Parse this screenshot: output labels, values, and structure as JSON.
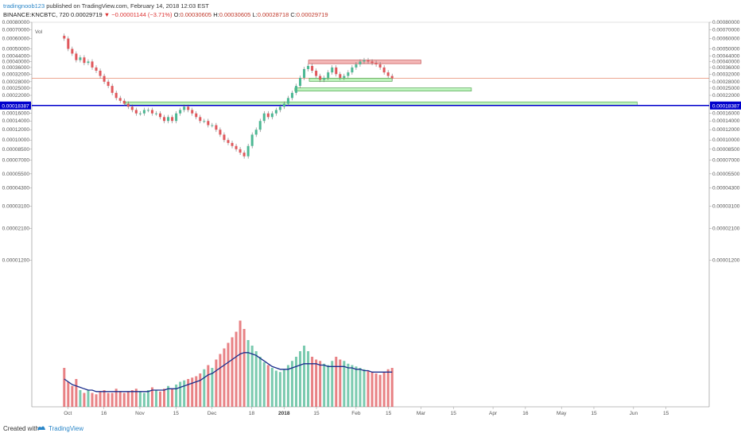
{
  "header": {
    "author": "tradingnoob123",
    "published_text": "published on TradingView.com, February 14, 2018 12:03 EST",
    "symbol": "BINANCE:KNCBTC, 720",
    "last": "0.00029719",
    "change": "−0.00001144 (−3.71%)",
    "o_label": "O:",
    "o_value": "0.00030605",
    "h_label": "H:",
    "h_value": "0.00030605",
    "l_label": "L:",
    "l_value": "0.00028718",
    "c_label": "C:",
    "c_value": "0.00029719",
    "vol_label": "Vol"
  },
  "footer": {
    "created_with": "Created with",
    "brand": "TradingView"
  },
  "colors": {
    "up": "#4db894",
    "down": "#e0575b",
    "wick": "#555555",
    "ma": "#1a2d8c",
    "support_fill": "#b8f2b6",
    "support_stroke": "#45a045",
    "resistance_fill": "#f2b0b0",
    "resistance_stroke": "#c04040",
    "hline": "#0000cc",
    "price_line": "#e07050"
  },
  "chart_data": {
    "type": "candlestick",
    "ylim": [
      9e-07,
      0.0008
    ],
    "y_scale": "log",
    "y_ticks": [
      "0.00080000",
      "0.00070000",
      "0.00060000",
      "0.00050000",
      "0.00044000",
      "0.00040000",
      "0.00036000",
      "0.00032000",
      "0.00028000",
      "0.00025000",
      "0.00022000",
      "0.00019000",
      "0.00016000",
      "0.00014000",
      "0.00012000",
      "0.00010000",
      "0.00008500",
      "0.00007000",
      "0.00005500",
      "0.00004300",
      "0.00003100",
      "0.00002100",
      "0.00001200"
    ],
    "x_ticks": [
      {
        "label": "Oct",
        "x": 0.0
      },
      {
        "label": "16",
        "x": 0.5
      },
      {
        "label": "Nov",
        "x": 1.0
      },
      {
        "label": "15",
        "x": 1.5
      },
      {
        "label": "Dec",
        "x": 2.0
      },
      {
        "label": "18",
        "x": 2.55
      },
      {
        "label": "2018",
        "x": 3.0,
        "bold": true
      },
      {
        "label": "15",
        "x": 3.45
      },
      {
        "label": "Feb",
        "x": 4.0
      },
      {
        "label": "15",
        "x": 4.45
      },
      {
        "label": "Mar",
        "x": 4.9
      },
      {
        "label": "15",
        "x": 5.35
      },
      {
        "label": "Apr",
        "x": 5.9
      },
      {
        "label": "16",
        "x": 6.35
      },
      {
        "label": "May",
        "x": 6.85
      },
      {
        "label": "15",
        "x": 7.3
      },
      {
        "label": "Jun",
        "x": 7.85
      },
      {
        "label": "15",
        "x": 8.3
      }
    ],
    "x_range": [
      -0.5,
      8.9
    ],
    "price_label": "0.00018387",
    "hline_price": 0.00018387,
    "last_price": 0.00029719,
    "zones": [
      {
        "kind": "resistance",
        "x0": 3.34,
        "x1": 4.9,
        "y0": 0.000385,
        "y1": 0.00041
      },
      {
        "kind": "support",
        "x0": 3.35,
        "x1": 4.5,
        "y0": 0.000286,
        "y1": 0.000298
      },
      {
        "kind": "support",
        "x0": 3.15,
        "x1": 5.6,
        "y0": 0.000238,
        "y1": 0.000251
      },
      {
        "kind": "support",
        "x0": 0.8,
        "x1": 7.9,
        "y0": 0.000185,
        "y1": 0.000196
      }
    ],
    "closes": [
      0.0006,
      0.0005,
      0.00046,
      0.00041,
      0.00043,
      0.00039,
      0.0004,
      0.00036,
      0.00034,
      0.00031,
      0.00028,
      0.00026,
      0.00023,
      0.00021,
      0.0002,
      0.00019,
      0.00018,
      0.00017,
      0.00016,
      0.00016,
      0.00017,
      0.00017,
      0.00016,
      0.00016,
      0.00015,
      0.00014,
      0.00015,
      0.00014,
      0.00016,
      0.00017,
      0.00018,
      0.00017,
      0.00016,
      0.00015,
      0.00014,
      0.00014,
      0.00013,
      0.00013,
      0.00012,
      0.00011,
      0.0001,
      9.5e-05,
      9e-05,
      8.5e-05,
      8e-05,
      7.5e-05,
      9e-05,
      0.00011,
      0.00012,
      0.00014,
      0.00016,
      0.00015,
      0.00016,
      0.00017,
      0.00018,
      0.00019,
      0.00021,
      0.00023,
      0.00026,
      0.0003,
      0.00035,
      0.00037,
      0.00034,
      0.00031,
      0.00029,
      0.0003,
      0.00033,
      0.00036,
      0.00032,
      0.0003,
      0.00031,
      0.00033,
      0.00036,
      0.00038,
      0.0004,
      0.00041,
      0.0004,
      0.00039,
      0.00038,
      0.00036,
      0.00033,
      0.00031,
      0.00029719
    ],
    "volumes": [
      2.8e-05,
      1.8e-05,
      1.5e-05,
      2e-05,
      1.2e-05,
      1e-05,
      1.2e-05,
      1e-05,
      9e-06,
      1.1e-05,
      1.2e-05,
      1e-05,
      1e-05,
      1.3e-05,
      1.1e-05,
      1e-05,
      1.1e-05,
      1.2e-05,
      1.3e-05,
      1.1e-05,
      1e-05,
      1.2e-05,
      1.4e-05,
      1.2e-05,
      1.1e-05,
      1.3e-05,
      1.5e-05,
      1.3e-05,
      1.6e-05,
      1.8e-05,
      1.9e-05,
      2e-05,
      2.1e-05,
      2.2e-05,
      2.4e-05,
      2.7e-05,
      3e-05,
      2.8e-05,
      3.4e-05,
      3.8e-05,
      4.2e-05,
      4.6e-05,
      5e-05,
      5.4e-05,
      6.2e-05,
      5.6e-05,
      4.8e-05,
      4.4e-05,
      4e-05,
      3.6e-05,
      3.2e-05,
      3e-05,
      2.8e-05,
      2.6e-05,
      2.5e-05,
      2.7e-05,
      3e-05,
      3.3e-05,
      3.6e-05,
      4e-05,
      4.4e-05,
      4e-05,
      3.6e-05,
      3.4e-05,
      3.3e-05,
      3.1e-05,
      3e-05,
      3.3e-05,
      3.6e-05,
      3.4e-05,
      3.3e-05,
      3.1e-05,
      3e-05,
      2.9e-05,
      2.8e-05,
      2.7e-05,
      2.6e-05,
      2.5e-05,
      2.4e-05,
      2.3e-05,
      2.5e-05,
      2.7e-05,
      2.8e-05
    ],
    "volume_ma": [
      2e-05,
      1.8e-05,
      1.6e-05,
      1.5e-05,
      1.4e-05,
      1.3e-05,
      1.2e-05,
      1.2e-05,
      1.1e-05,
      1.1e-05,
      1.1e-05,
      1.1e-05,
      1.1e-05,
      1.1e-05,
      1.1e-05,
      1.1e-05,
      1.1e-05,
      1.1e-05,
      1.1e-05,
      1.1e-05,
      1.1e-05,
      1.1e-05,
      1.2e-05,
      1.2e-05,
      1.2e-05,
      1.2e-05,
      1.3e-05,
      1.3e-05,
      1.3e-05,
      1.4e-05,
      1.5e-05,
      1.6e-05,
      1.7e-05,
      1.8e-05,
      1.9e-05,
      2.1e-05,
      2.3e-05,
      2.4e-05,
      2.6e-05,
      2.8e-05,
      3e-05,
      3.2e-05,
      3.4e-05,
      3.6e-05,
      3.8e-05,
      3.9e-05,
      3.9e-05,
      3.8e-05,
      3.7e-05,
      3.5e-05,
      3.3e-05,
      3.1e-05,
      2.9e-05,
      2.8e-05,
      2.7e-05,
      2.7e-05,
      2.7e-05,
      2.8e-05,
      2.9e-05,
      3e-05,
      3.1e-05,
      3.1e-05,
      3.1e-05,
      3.1e-05,
      3e-05,
      3e-05,
      2.9e-05,
      2.9e-05,
      2.9e-05,
      2.9e-05,
      2.9e-05,
      2.8e-05,
      2.8e-05,
      2.7e-05,
      2.7e-05,
      2.6e-05,
      2.6e-05,
      2.5e-05,
      2.5e-05,
      2.5e-05,
      2.5e-05,
      2.5e-05,
      2.5e-05
    ]
  }
}
